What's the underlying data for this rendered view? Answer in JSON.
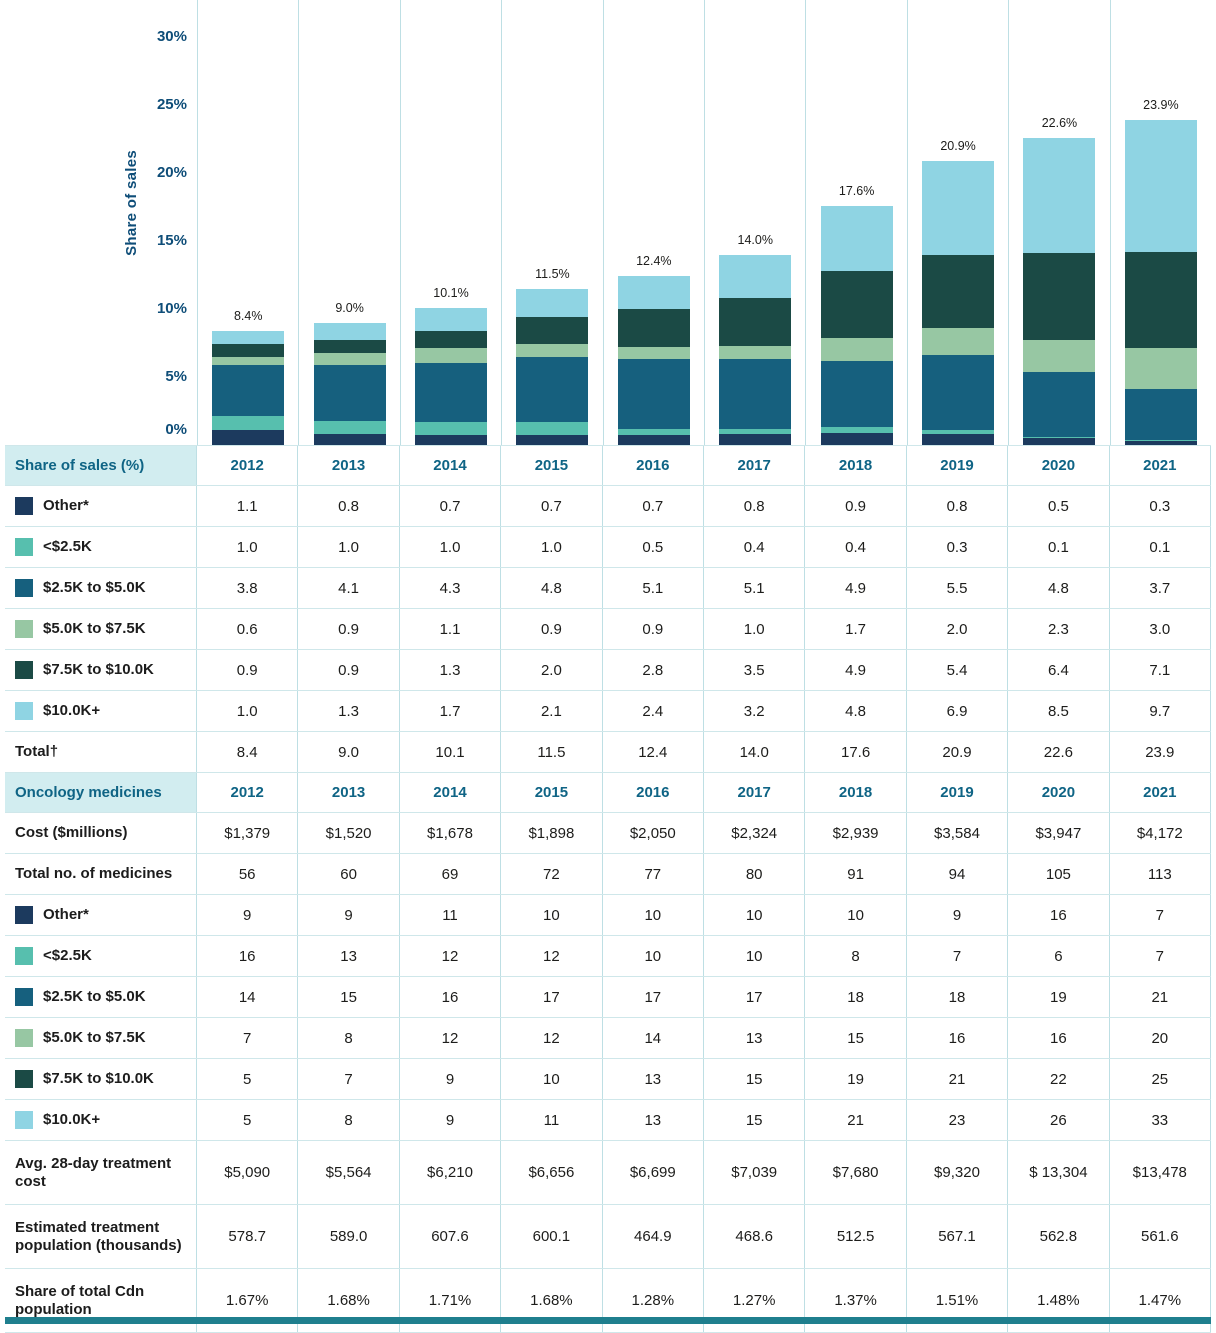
{
  "chart_data": {
    "type": "bar",
    "stacked": true,
    "title": "",
    "ylabel": "Share of sales",
    "xlabel": "",
    "ylim": [
      0,
      30
    ],
    "yticks": [
      0,
      5,
      10,
      15,
      20,
      25,
      30
    ],
    "grid": "vertical-column-separators-only",
    "legend_position": "table-rows-below",
    "categories": [
      "2012",
      "2013",
      "2014",
      "2015",
      "2016",
      "2017",
      "2018",
      "2019",
      "2020",
      "2021"
    ],
    "series": [
      {
        "name": "Other*",
        "color": "#1c3a5e",
        "values": [
          1.1,
          0.8,
          0.7,
          0.7,
          0.7,
          0.8,
          0.9,
          0.8,
          0.5,
          0.3
        ]
      },
      {
        "name": "<$2.5K",
        "color": "#57bfae",
        "values": [
          1.0,
          1.0,
          1.0,
          1.0,
          0.5,
          0.4,
          0.4,
          0.3,
          0.1,
          0.1
        ]
      },
      {
        "name": "$2.5K to $5.0K",
        "color": "#16607e",
        "values": [
          3.8,
          4.1,
          4.3,
          4.8,
          5.1,
          5.1,
          4.9,
          5.5,
          4.8,
          3.7
        ]
      },
      {
        "name": "$5.0K to $7.5K",
        "color": "#97c7a3",
        "values": [
          0.6,
          0.9,
          1.1,
          0.9,
          0.9,
          1.0,
          1.7,
          2.0,
          2.3,
          3.0
        ]
      },
      {
        "name": "$7.5K to $10.0K",
        "color": "#1b4a45",
        "values": [
          0.9,
          0.9,
          1.3,
          2.0,
          2.8,
          3.5,
          4.9,
          5.4,
          6.4,
          7.1
        ]
      },
      {
        "name": "$10.0K+",
        "color": "#8fd4e3",
        "values": [
          1.0,
          1.3,
          1.7,
          2.1,
          2.4,
          3.2,
          4.8,
          6.9,
          8.5,
          9.7
        ]
      }
    ],
    "totals": [
      8.4,
      9.0,
      10.1,
      11.5,
      12.4,
      14.0,
      17.6,
      20.9,
      22.6,
      23.9
    ],
    "total_labels": [
      "8.4%",
      "9.0%",
      "10.1%",
      "11.5%",
      "12.4%",
      "14.0%",
      "17.6%",
      "20.9%",
      "22.6%",
      "23.9%"
    ]
  },
  "table": {
    "years": [
      "2012",
      "2013",
      "2014",
      "2015",
      "2016",
      "2017",
      "2018",
      "2019",
      "2020",
      "2021"
    ],
    "rows": [
      {
        "kind": "header",
        "name": "share-of-sales-header",
        "label": "Share of sales (%)",
        "values": [
          "2012",
          "2013",
          "2014",
          "2015",
          "2016",
          "2017",
          "2018",
          "2019",
          "2020",
          "2021"
        ]
      },
      {
        "kind": "swatch",
        "name": "share-other",
        "swatch": "#1c3a5e",
        "label": "Other*",
        "values": [
          "1.1",
          "0.8",
          "0.7",
          "0.7",
          "0.7",
          "0.8",
          "0.9",
          "0.8",
          "0.5",
          "0.3"
        ]
      },
      {
        "kind": "swatch",
        "name": "share-lt-2-5k",
        "swatch": "#57bfae",
        "label": "<$2.5K",
        "values": [
          "1.0",
          "1.0",
          "1.0",
          "1.0",
          "0.5",
          "0.4",
          "0.4",
          "0.3",
          "0.1",
          "0.1"
        ]
      },
      {
        "kind": "swatch",
        "name": "share-2-5k-to-5k",
        "swatch": "#16607e",
        "label": "$2.5K to $5.0K",
        "values": [
          "3.8",
          "4.1",
          "4.3",
          "4.8",
          "5.1",
          "5.1",
          "4.9",
          "5.5",
          "4.8",
          "3.7"
        ]
      },
      {
        "kind": "swatch",
        "name": "share-5k-to-7-5k",
        "swatch": "#97c7a3",
        "label": "$5.0K to $7.5K",
        "values": [
          "0.6",
          "0.9",
          "1.1",
          "0.9",
          "0.9",
          "1.0",
          "1.7",
          "2.0",
          "2.3",
          "3.0"
        ]
      },
      {
        "kind": "swatch",
        "name": "share-7-5k-to-10k",
        "swatch": "#1b4a45",
        "label": "$7.5K to $10.0K",
        "values": [
          "0.9",
          "0.9",
          "1.3",
          "2.0",
          "2.8",
          "3.5",
          "4.9",
          "5.4",
          "6.4",
          "7.1"
        ]
      },
      {
        "kind": "swatch",
        "name": "share-10k-plus",
        "swatch": "#8fd4e3",
        "label": "$10.0K+",
        "values": [
          "1.0",
          "1.3",
          "1.7",
          "2.1",
          "2.4",
          "3.2",
          "4.8",
          "6.9",
          "8.5",
          "9.7"
        ]
      },
      {
        "kind": "plain",
        "name": "share-total",
        "label": "Total†",
        "values": [
          "8.4",
          "9.0",
          "10.1",
          "11.5",
          "12.4",
          "14.0",
          "17.6",
          "20.9",
          "22.6",
          "23.9"
        ]
      },
      {
        "kind": "header",
        "name": "oncology-medicines-header",
        "label": "Oncology medicines",
        "values": [
          "2012",
          "2013",
          "2014",
          "2015",
          "2016",
          "2017",
          "2018",
          "2019",
          "2020",
          "2021"
        ]
      },
      {
        "kind": "plain",
        "name": "cost-millions",
        "label": "Cost ($millions)",
        "values": [
          "$1,379",
          "$1,520",
          "$1,678",
          "$1,898",
          "$2,050",
          "$2,324",
          "$2,939",
          "$3,584",
          "$3,947",
          "$4,172"
        ]
      },
      {
        "kind": "plain",
        "name": "total-no-of-medicines",
        "label": "Total no. of medicines",
        "values": [
          "56",
          "60",
          "69",
          "72",
          "77",
          "80",
          "91",
          "94",
          "105",
          "113"
        ]
      },
      {
        "kind": "swatch",
        "name": "count-other",
        "swatch": "#1c3a5e",
        "label": "Other*",
        "values": [
          "9",
          "9",
          "11",
          "10",
          "10",
          "10",
          "10",
          "9",
          "16",
          "7"
        ]
      },
      {
        "kind": "swatch",
        "name": "count-lt-2-5k",
        "swatch": "#57bfae",
        "label": "<$2.5K",
        "values": [
          "16",
          "13",
          "12",
          "12",
          "10",
          "10",
          "8",
          "7",
          "6",
          "7"
        ]
      },
      {
        "kind": "swatch",
        "name": "count-2-5k-to-5k",
        "swatch": "#16607e",
        "label": "$2.5K to $5.0K",
        "values": [
          "14",
          "15",
          "16",
          "17",
          "17",
          "17",
          "18",
          "18",
          "19",
          "21"
        ]
      },
      {
        "kind": "swatch",
        "name": "count-5k-to-7-5k",
        "swatch": "#97c7a3",
        "label": "$5.0K to $7.5K",
        "values": [
          "7",
          "8",
          "12",
          "12",
          "14",
          "13",
          "15",
          "16",
          "16",
          "20"
        ]
      },
      {
        "kind": "swatch",
        "name": "count-7-5k-to-10k",
        "swatch": "#1b4a45",
        "label": "$7.5K to $10.0K",
        "values": [
          "5",
          "7",
          "9",
          "10",
          "13",
          "15",
          "19",
          "21",
          "22",
          "25"
        ]
      },
      {
        "kind": "swatch",
        "name": "count-10k-plus",
        "swatch": "#8fd4e3",
        "label": "$10.0K+",
        "values": [
          "5",
          "8",
          "9",
          "11",
          "13",
          "15",
          "21",
          "23",
          "26",
          "33"
        ]
      },
      {
        "kind": "plain",
        "tall": true,
        "name": "avg-28-day-treatment-cost",
        "label": "Avg. 28-day treatment cost",
        "values": [
          "$5,090",
          "$5,564",
          "$6,210",
          "$6,656",
          "$6,699",
          "$7,039",
          "$7,680",
          "$9,320",
          "$ 13,304",
          "$13,478"
        ]
      },
      {
        "kind": "plain",
        "tall": true,
        "name": "estimated-treatment-population",
        "label": "Estimated treatment population (thousands)",
        "values": [
          "578.7",
          "589.0",
          "607.6",
          "600.1",
          "464.9",
          "468.6",
          "512.5",
          "567.1",
          "562.8",
          "561.6"
        ]
      },
      {
        "kind": "plain",
        "tall": true,
        "name": "share-of-total-cdn-population",
        "label": "Share of total Cdn population",
        "values": [
          "1.67%",
          "1.68%",
          "1.71%",
          "1.68%",
          "1.28%",
          "1.27%",
          "1.37%",
          "1.51%",
          "1.48%",
          "1.47%"
        ]
      }
    ]
  },
  "colors": {
    "header_bg": "#d2edf0",
    "header_text": "#0f6485",
    "axis_text": "#0e4d78",
    "grid_line": "#bedfe4",
    "row_line": "#cfe7ea",
    "footer_bar": "#1f7f8e"
  }
}
